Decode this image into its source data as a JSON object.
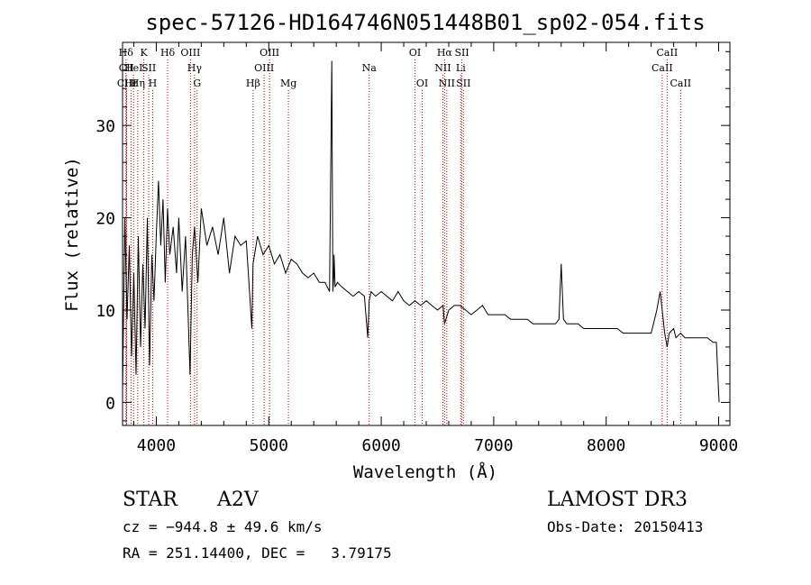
{
  "chart_data": {
    "type": "line",
    "title": "spec-57126-HD164746N051448B01_sp02-054.fits",
    "xlabel": "Wavelength (Å)",
    "ylabel": "Flux (relative)",
    "xlim": [
      3700,
      9100
    ],
    "ylim": [
      -2.5,
      39
    ],
    "xticks": [
      4000,
      5000,
      6000,
      7000,
      8000,
      9000
    ],
    "yticks": [
      0,
      10,
      20,
      30
    ],
    "series": [
      {
        "name": "spectrum",
        "x": [
          3700,
          3720,
          3740,
          3760,
          3780,
          3800,
          3820,
          3840,
          3860,
          3880,
          3900,
          3920,
          3940,
          3960,
          3980,
          4000,
          4020,
          4040,
          4060,
          4080,
          4100,
          4120,
          4150,
          4180,
          4200,
          4230,
          4260,
          4300,
          4320,
          4340,
          4370,
          4400,
          4450,
          4500,
          4550,
          4600,
          4650,
          4700,
          4750,
          4800,
          4850,
          4860,
          4900,
          4950,
          5000,
          5050,
          5100,
          5150,
          5200,
          5250,
          5300,
          5350,
          5400,
          5450,
          5500,
          5540,
          5560,
          5570,
          5577,
          5580,
          5590,
          5610,
          5650,
          5700,
          5750,
          5800,
          5850,
          5880,
          5893,
          5910,
          5950,
          6000,
          6050,
          6100,
          6150,
          6200,
          6250,
          6300,
          6350,
          6400,
          6450,
          6500,
          6550,
          6563,
          6600,
          6650,
          6700,
          6750,
          6800,
          6850,
          6900,
          6950,
          7000,
          7050,
          7100,
          7150,
          7200,
          7250,
          7300,
          7350,
          7400,
          7450,
          7500,
          7550,
          7580,
          7600,
          7620,
          7650,
          7700,
          7750,
          7800,
          7850,
          7900,
          7950,
          8000,
          8050,
          8100,
          8150,
          8200,
          8250,
          8300,
          8350,
          8400,
          8450,
          8480,
          8498,
          8520,
          8542,
          8560,
          8600,
          8620,
          8662,
          8700,
          8750,
          8800,
          8850,
          8900,
          8950,
          8980,
          9000,
          9005
        ],
        "values": [
          1,
          20,
          9,
          17,
          5,
          14,
          3,
          18,
          6,
          15,
          8,
          20,
          4,
          16,
          11,
          18,
          24,
          17,
          22,
          13,
          21,
          16,
          19,
          14,
          20,
          12,
          18,
          3,
          16,
          19,
          13,
          21,
          17,
          19,
          16,
          20,
          14,
          18,
          17,
          17.5,
          8,
          15,
          18,
          16,
          17,
          15,
          16,
          14,
          15.5,
          15,
          14,
          13.5,
          14,
          13,
          13,
          12,
          37,
          12,
          13.5,
          16,
          12.5,
          13,
          12.5,
          12,
          11.5,
          12,
          11.5,
          7,
          11,
          12,
          11.5,
          12,
          11.5,
          11,
          12,
          11,
          10.5,
          11,
          10.5,
          11,
          10.5,
          10,
          10.5,
          8.5,
          10,
          10.5,
          10.5,
          10,
          9.5,
          10,
          10.5,
          9.5,
          9.5,
          9.5,
          9.5,
          9,
          9,
          9,
          9,
          8.5,
          8.5,
          8.5,
          8.5,
          8.5,
          9,
          15,
          9,
          8.5,
          8.5,
          8.5,
          8,
          8,
          8,
          8,
          8,
          8,
          8,
          7.5,
          7.5,
          7.5,
          7.5,
          7.5,
          7.5,
          10,
          12,
          10,
          7.5,
          6,
          7.5,
          8,
          7,
          7.5,
          7,
          7,
          7,
          7,
          7,
          6.5,
          6.5,
          1,
          0
        ]
      }
    ],
    "lines": [
      {
        "label": "Hδ",
        "wl": 3730,
        "row": 1
      },
      {
        "label": "CII",
        "wl": 3734,
        "row": 2
      },
      {
        "label": "CIII",
        "wl": 3737,
        "row": 3
      },
      {
        "label": "Hε",
        "wl": 3775,
        "row": 3
      },
      {
        "label": "HeI",
        "wl": 3798,
        "row": 2
      },
      {
        "label": "Hη",
        "wl": 3835,
        "row": 3
      },
      {
        "label": "K",
        "wl": 3889,
        "row": 1
      },
      {
        "label": "SII",
        "wl": 3933,
        "row": 2
      },
      {
        "label": "H",
        "wl": 3968,
        "row": 3
      },
      {
        "label": "Hδ",
        "wl": 4101,
        "row": 1
      },
      {
        "label": "OIII",
        "wl": 4304,
        "row": 1
      },
      {
        "label": "Hγ",
        "wl": 4340,
        "row": 2
      },
      {
        "label": "G",
        "wl": 4363,
        "row": 3
      },
      {
        "label": "Hβ",
        "wl": 4861,
        "row": 3
      },
      {
        "label": "OIII",
        "wl": 4959,
        "row": 2
      },
      {
        "label": "OIII",
        "wl": 5007,
        "row": 1
      },
      {
        "label": "Mg",
        "wl": 5175,
        "row": 3
      },
      {
        "label": "Na",
        "wl": 5893,
        "row": 2
      },
      {
        "label": "OI",
        "wl": 6300,
        "row": 1
      },
      {
        "label": "OI",
        "wl": 6364,
        "row": 3
      },
      {
        "label": "NII",
        "wl": 6548,
        "row": 2
      },
      {
        "label": "Hα",
        "wl": 6563,
        "row": 1
      },
      {
        "label": "NII",
        "wl": 6583,
        "row": 3
      },
      {
        "label": "SII",
        "wl": 6717,
        "row": 1
      },
      {
        "label": "Li",
        "wl": 6707,
        "row": 2
      },
      {
        "label": "SII",
        "wl": 6731,
        "row": 3
      },
      {
        "label": "CaII",
        "wl": 8498,
        "row": 2
      },
      {
        "label": "CaII",
        "wl": 8542,
        "row": 1
      },
      {
        "label": "CaII",
        "wl": 8662,
        "row": 3
      }
    ]
  },
  "info": {
    "object_type": "STAR",
    "subclass": "A2V",
    "survey": "LAMOST DR3",
    "redshift": "cz = −944.8 ± 49.6 km/s",
    "obs_date": "Obs-Date: 20150413",
    "coords": "RA = 251.14400, DEC =   3.79175"
  },
  "colors": {
    "line": "#000000",
    "marker": "#c00000",
    "axis": "#000000"
  }
}
